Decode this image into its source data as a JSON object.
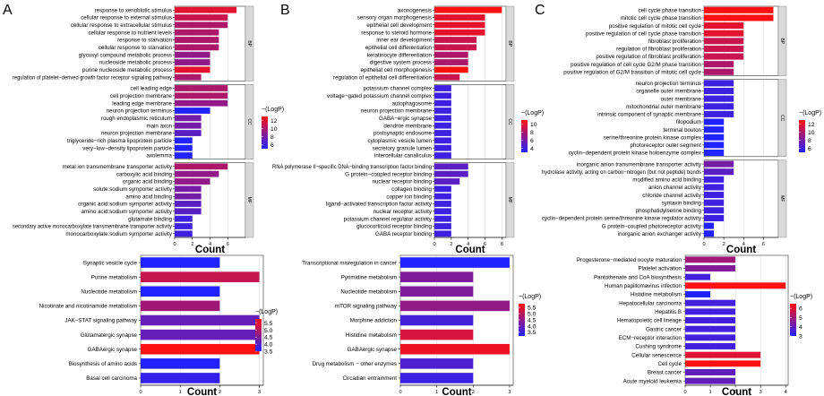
{
  "colors": {
    "low": "#2222ff",
    "high": "#ff1111",
    "panel_border": "#333333",
    "strip_fill": "#d9d9d9",
    "strip_border": "#888888",
    "grid": "#bbbbbb"
  },
  "chart_data": [
    {
      "type": "bar",
      "panel": "A",
      "part": "GO",
      "title": "A",
      "xlabel": "Count",
      "ylabel": "",
      "xlim": [
        0,
        8
      ],
      "xticks": [
        0,
        2,
        4,
        6
      ],
      "legend_title": "−(LogP)",
      "legend_ticks": [
        6,
        8,
        10,
        12
      ],
      "color_range": [
        5,
        13
      ],
      "legend_placement": "right",
      "groups": [
        {
          "strip": "BP",
          "categories": [
            "response to xenobiotic stimulus",
            "cellular response to external stimulus",
            "cellular response to extracellular stimulus",
            "cellular response to nutrient levels",
            "response to starvation",
            "cellular response to starvation",
            "glycosyl compound metabolic process",
            "nucleoside metabolic process",
            "purine nucleoside metabolic process",
            "regulation of platelet−derived growth factor receptor signaling pathway"
          ],
          "values": [
            7,
            6,
            6,
            5,
            5,
            5,
            4,
            4,
            4,
            3
          ],
          "logp": [
            12,
            11,
            10,
            10,
            10,
            10,
            9,
            9,
            12,
            10
          ]
        },
        {
          "strip": "CC",
          "categories": [
            "cell leading edge",
            "cell projection membrane",
            "leading edge membrane",
            "neuron projection terminus",
            "rough endoplasmic reticulum",
            "main axon",
            "neuron projection membrane",
            "triglyceride−rich plasma lipoprotein particle",
            "very−low−density lipoprotein particle",
            "axolemma"
          ],
          "values": [
            6,
            6,
            6,
            4,
            3,
            3,
            3,
            2,
            2,
            2
          ],
          "logp": [
            10,
            10,
            9,
            5,
            8,
            8,
            7,
            5,
            5,
            5
          ]
        },
        {
          "strip": "MF",
          "categories": [
            "metal ion transmembrane transporter activity",
            "carboxylic acid binding",
            "organic acid binding",
            "solute:sodium symporter activity",
            "amino acid binding",
            "organic acid:sodium symporter activity",
            "amino acid:sodium symporter activity",
            "glutamate binding",
            "secondary active monocarboxylate transmembrane transporter activity",
            "monocarboxylate:sodium symporter activity"
          ],
          "values": [
            6,
            5,
            4,
            3,
            3,
            3,
            3,
            2,
            2,
            2
          ],
          "logp": [
            10,
            9,
            9,
            8,
            8,
            7,
            7,
            6,
            6,
            6
          ]
        }
      ]
    },
    {
      "type": "bar",
      "panel": "A",
      "part": "KEGG",
      "xlabel": "Count",
      "xlim": [
        0,
        3.1
      ],
      "xticks": [
        0,
        1,
        2,
        3
      ],
      "legend_title": "−(LogP)",
      "legend_ticks": [
        "3.5",
        "4.0",
        "4.5",
        "5.0",
        "5.5"
      ],
      "color_range": [
        3.5,
        5.8
      ],
      "legend_placement": "right",
      "categories": [
        "Synaptic vesicle cycle",
        "Purine metabolism",
        "Nucleotide metabolism",
        "Nicotinate and nicotinamide metabolism",
        "JAK−STAT signaling pathway",
        "Glutamatergic synapse",
        "GABAergic synapse",
        "Biosynthesis of amino acids",
        "Basal cell carcinoma"
      ],
      "values": [
        2,
        3,
        2,
        2,
        3,
        3,
        3,
        2,
        2
      ],
      "logp": [
        3.5,
        5.2,
        3.5,
        4.8,
        4.2,
        4.2,
        5.8,
        3.5,
        3.7
      ]
    },
    {
      "type": "bar",
      "panel": "B",
      "part": "GO",
      "title": "B",
      "xlabel": "Count",
      "ylabel": "",
      "xlim": [
        0,
        8.5
      ],
      "xticks": [
        0,
        2,
        4,
        6,
        8
      ],
      "legend_title": "−(LogP)",
      "legend_ticks": [
        4,
        6,
        8,
        10
      ],
      "color_range": [
        3,
        11
      ],
      "legend_placement": "right",
      "groups": [
        {
          "strip": "BP",
          "categories": [
            "axonogenesis",
            "sensory organ morphogenesis",
            "epithelial cell development",
            "response to steroid hormone",
            "inner ear development",
            "epithelial cell differentiation",
            "keratinocyte differentiation",
            "digestive system process",
            "epithelial cell morphogenesis",
            "regulation of epithelial cell differentiation"
          ],
          "values": [
            8,
            6,
            6,
            6,
            5,
            5,
            4,
            4,
            4,
            3
          ],
          "logp": [
            11,
            10,
            10,
            10,
            9,
            9,
            8,
            8,
            11,
            9
          ]
        },
        {
          "strip": "CC",
          "categories": [
            "potassium channel complex",
            "voltage−gated potassium channel complex",
            "autophagosome",
            "neuron projection membrane",
            "GABA−ergic synapse",
            "dendrite membrane",
            "postsynaptic endosome",
            "cytoplasmic vesicle lumen",
            "secretory granule lumen",
            "intercellular canaliculus"
          ],
          "values": [
            2,
            2,
            2,
            2,
            2,
            2,
            2,
            2,
            2,
            2
          ],
          "logp": [
            4,
            4,
            4,
            4,
            4,
            4,
            4,
            4,
            4,
            4
          ]
        },
        {
          "strip": "MF",
          "categories": [
            "RNA polymerase II−specific DNA−binding transcription factor binding",
            "G protein−coupled receptor binding",
            "nuclear receptor binding",
            "collagen binding",
            "copper ion binding",
            "ligand−activated transcription factor activity",
            "nuclear receptor activity",
            "potassium channel regulator activity",
            "glucocorticoid receptor binding",
            "GABA receptor binding"
          ],
          "values": [
            4,
            4,
            3,
            2,
            2,
            2,
            2,
            2,
            2,
            2
          ],
          "logp": [
            5,
            5,
            5,
            4,
            4,
            4,
            4,
            4,
            4,
            4
          ]
        }
      ]
    },
    {
      "type": "bar",
      "panel": "B",
      "part": "KEGG",
      "xlabel": "Count",
      "xlim": [
        0,
        3.1
      ],
      "xticks": [
        0,
        1,
        2,
        3
      ],
      "legend_title": "−(LogP)",
      "legend_ticks": [
        "3.5",
        "4.0",
        "4.5",
        "5.0",
        "5.5"
      ],
      "color_range": [
        3.2,
        5.8
      ],
      "legend_placement": "right",
      "categories": [
        "Transcriptional misregulation in cancer",
        "Pyrimidine metabolism",
        "Nucleotide metabolism",
        "mTOR signaling pathway",
        "Morphine addiction",
        "Histidine metabolism",
        "GABAergic synapse",
        "Drug metabolism − other enzymes",
        "Circadian entrainment"
      ],
      "values": [
        3,
        2,
        2,
        3,
        2,
        2,
        3,
        2,
        2
      ],
      "logp": [
        3.2,
        4.3,
        4.3,
        4.5,
        3.6,
        5.3,
        5.6,
        3.7,
        3.5
      ]
    },
    {
      "type": "bar",
      "panel": "C",
      "part": "GO",
      "title": "C",
      "xlabel": "Count",
      "ylabel": "",
      "xlim": [
        0,
        7.5
      ],
      "xticks": [
        0,
        2,
        4,
        6
      ],
      "legend_title": "−(LogP)",
      "legend_ticks": [
        6,
        8,
        10,
        12
      ],
      "color_range": [
        5,
        13
      ],
      "legend_placement": "right",
      "groups": [
        {
          "strip": "BP",
          "categories": [
            "cell cycle phase transition",
            "mitotic cell cycle phase transition",
            "positive regulation of mitotic cell cycle",
            "positive regulation of cell cycle phase transition",
            "fibroblast proliferation",
            "regulation of fibroblast proliferation",
            "positive regulation of fibroblast proliferation",
            "positive regulation of cell cycle G2/M phase transition",
            "positive regulation of G2/M transition of mitotic cell cycle"
          ],
          "values": [
            7,
            7,
            4,
            4,
            4,
            4,
            4,
            3,
            3
          ],
          "logp": [
            13,
            13,
            12,
            12,
            11,
            11,
            11,
            10,
            10
          ]
        },
        {
          "strip": "CC",
          "categories": [
            "neuron projection terminus",
            "organelle outer membrane",
            "outer membrane",
            "mitochondrial outer membrane",
            "intrinsic component of synaptic membrane",
            "filopodium",
            "terminal bouton",
            "serine/threonine protein kinase complex",
            "photoreceptor outer segment",
            "cyclin−dependent protein kinase holoenzyme complex"
          ],
          "values": [
            3,
            3,
            3,
            3,
            3,
            2,
            2,
            2,
            2,
            2
          ],
          "logp": [
            6,
            6,
            6,
            6,
            6,
            5,
            5,
            5,
            5,
            5
          ]
        },
        {
          "strip": "MF",
          "categories": [
            "inorganic anion transmembrane transporter activity",
            "hydrolase activity, acting on carbon−nitrogen (but not peptide) bonds",
            "modified amino acid binding",
            "anion channel activity",
            "chloride channel activity",
            "syntaxin binding",
            "phosphatidylserine binding",
            "cyclin−dependent protein serine/threonine kinase regulator activity",
            "G protein−coupled photoreceptor activity",
            "inorganic anion exchanger activity"
          ],
          "values": [
            3,
            3,
            2,
            2,
            2,
            2,
            2,
            2,
            1,
            1
          ],
          "logp": [
            8,
            7,
            6,
            6,
            6,
            6,
            6,
            6,
            5,
            5
          ]
        }
      ]
    },
    {
      "type": "bar",
      "panel": "C",
      "part": "KEGG",
      "xlabel": "Count",
      "xlim": [
        0,
        4.1
      ],
      "xticks": [
        0,
        1,
        2,
        3,
        4
      ],
      "legend_title": "−(LogP)",
      "legend_ticks": [
        "3",
        "4",
        "5",
        "6"
      ],
      "color_range": [
        3,
        6.5
      ],
      "legend_placement": "right",
      "categories": [
        "Progesterone−mediated oocyte maturation",
        "Platelet activation",
        "Pantothenate and CoA biosynthesis",
        "Human papillomavirus infection",
        "Histidine metabolism",
        "Hepatocellular carcinoma",
        "Hepatitis B",
        "Hematopoietic cell lineage",
        "Gastric cancer",
        "ECM−receptor interaction",
        "Cushing syndrome",
        "Cellular senescence",
        "Cell cycle",
        "Breast cancer",
        "Acute myeloid leukemia"
      ],
      "values": [
        2,
        2,
        1,
        4,
        1,
        2,
        2,
        2,
        2,
        2,
        2,
        3,
        3,
        2,
        2
      ],
      "logp": [
        5.0,
        4.5,
        3.5,
        6.5,
        3.0,
        3.5,
        3.5,
        3.5,
        3.5,
        3.5,
        3.5,
        6.0,
        6.5,
        4.0,
        4.0
      ]
    }
  ]
}
